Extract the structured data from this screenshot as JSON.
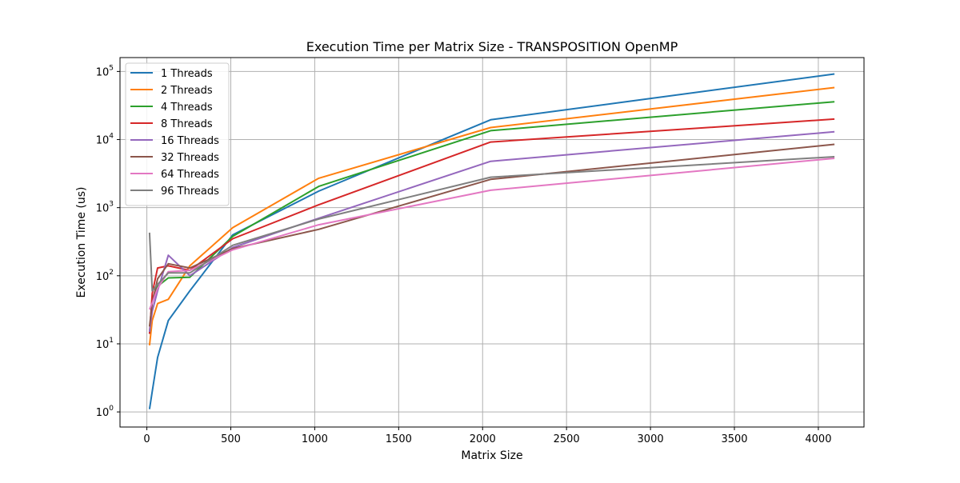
{
  "chart_data": {
    "type": "line",
    "title": "Execution Time per Matrix Size - TRANSPOSITION OpenMP",
    "xlabel": "Matrix Size",
    "ylabel": "Execution Time (us)",
    "xlim": [
      -160,
      4272
    ],
    "ylim": [
      0.6,
      160000
    ],
    "yscale": "log",
    "grid": true,
    "legend_position": "top-left",
    "x_ticks": [
      0,
      500,
      1000,
      1500,
      2000,
      2500,
      3000,
      3500,
      4000
    ],
    "x_tick_labels": [
      "0",
      "500",
      "1000",
      "1500",
      "2000",
      "2500",
      "3000",
      "3500",
      "4000"
    ],
    "y_ticks": [
      1,
      10,
      100,
      1000,
      10000,
      100000
    ],
    "y_tick_base": "10",
    "y_tick_exponents": [
      "0",
      "1",
      "2",
      "3",
      "4",
      "5"
    ],
    "x": [
      16,
      32,
      64,
      128,
      256,
      512,
      1024,
      2048,
      4096
    ],
    "series": [
      {
        "name": "1 Threads",
        "color": "#1f77b4",
        "values": [
          1.1,
          2.0,
          6.3,
          22,
          60,
          400,
          1750,
          19500,
          92000
        ]
      },
      {
        "name": "2 Threads",
        "color": "#ff7f0e",
        "values": [
          9.5,
          22,
          39,
          45,
          140,
          510,
          2700,
          15000,
          58000
        ]
      },
      {
        "name": "4 Threads",
        "color": "#2ca02c",
        "values": [
          14,
          45,
          70,
          93,
          95,
          380,
          2050,
          13500,
          36000
        ]
      },
      {
        "name": "8 Threads",
        "color": "#d62728",
        "values": [
          14,
          55,
          130,
          140,
          120,
          350,
          1100,
          9200,
          20000
        ]
      },
      {
        "name": "16 Threads",
        "color": "#9467bd",
        "values": [
          15,
          30,
          60,
          200,
          100,
          260,
          700,
          4800,
          13000
        ]
      },
      {
        "name": "32 Threads",
        "color": "#8c564b",
        "values": [
          18,
          40,
          90,
          150,
          130,
          250,
          480,
          2600,
          8500
        ]
      },
      {
        "name": "64 Threads",
        "color": "#e377c2",
        "values": [
          32,
          40,
          65,
          115,
          120,
          240,
          560,
          1800,
          5300
        ]
      },
      {
        "name": "96 Threads",
        "color": "#7f7f7f",
        "values": [
          430,
          60,
          75,
          110,
          110,
          280,
          680,
          2800,
          5600
        ]
      }
    ]
  }
}
